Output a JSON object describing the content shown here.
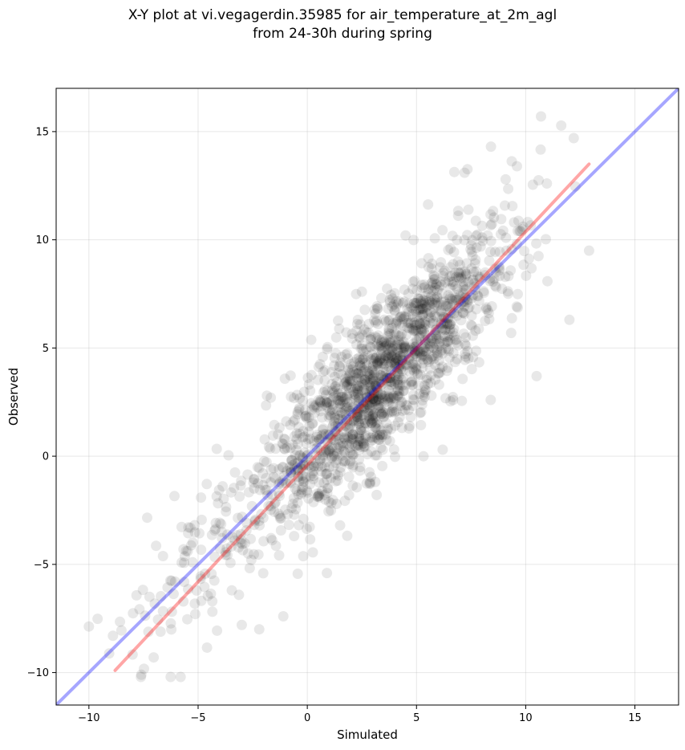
{
  "chart_data": {
    "type": "scatter",
    "title_line1": "X-Y plot at vi.vegagerdin.35985 for air_temperature_at_2m_agl",
    "title_line2": "from 24-30h during spring",
    "xlabel": "Simulated",
    "ylabel": "Observed",
    "xlim": [
      -11.5,
      17
    ],
    "ylim": [
      -11.5,
      17
    ],
    "xticks": [
      -10,
      -5,
      0,
      5,
      10,
      15
    ],
    "yticks": [
      -10,
      -5,
      0,
      5,
      10,
      15
    ],
    "xtick_labels": [
      "−10",
      "−5",
      "0",
      "5",
      "10",
      "15"
    ],
    "ytick_labels": [
      "−10",
      "−5",
      "0",
      "5",
      "10",
      "15"
    ],
    "grid": true,
    "point_color": "#000000",
    "point_opacity": 0.09,
    "point_count_approx": 1700,
    "point_cloud": {
      "x_range": [
        -10,
        13
      ],
      "y_range": [
        -10.2,
        15.7
      ],
      "core_trend_slope": 0.99,
      "core_trend_intercept": 0.2
    },
    "lines": [
      {
        "name": "identity",
        "color": "#0000ff",
        "opacity": 0.35,
        "x": [
          -11.5,
          17
        ],
        "y": [
          -11.5,
          17
        ]
      },
      {
        "name": "regression",
        "color": "#ff0000",
        "opacity": 0.35,
        "x": [
          -8.8,
          12.9
        ],
        "y": [
          -9.9,
          13.5
        ]
      }
    ],
    "highlight_points": [
      {
        "x": 10.7,
        "y": 15.7
      },
      {
        "x": 12.2,
        "y": 14.7
      },
      {
        "x": 12.9,
        "y": 9.5
      },
      {
        "x": 12.0,
        "y": 6.3
      },
      {
        "x": 10.5,
        "y": 3.7
      },
      {
        "x": -5.8,
        "y": -10.2
      },
      {
        "x": -7.6,
        "y": -10.1
      },
      {
        "x": -8.9,
        "y": -8.3
      },
      {
        "x": -2.2,
        "y": -8.0
      },
      {
        "x": -1.1,
        "y": -7.4
      },
      {
        "x": 6.2,
        "y": 0.3
      },
      {
        "x": 8.4,
        "y": 2.6
      },
      {
        "x": -3.0,
        "y": -7.8
      },
      {
        "x": 0.9,
        "y": -5.4
      },
      {
        "x": 2.5,
        "y": 7.6
      },
      {
        "x": 4.5,
        "y": 10.2
      },
      {
        "x": 7.2,
        "y": 13.1
      },
      {
        "x": 9.6,
        "y": 13.4
      }
    ]
  }
}
